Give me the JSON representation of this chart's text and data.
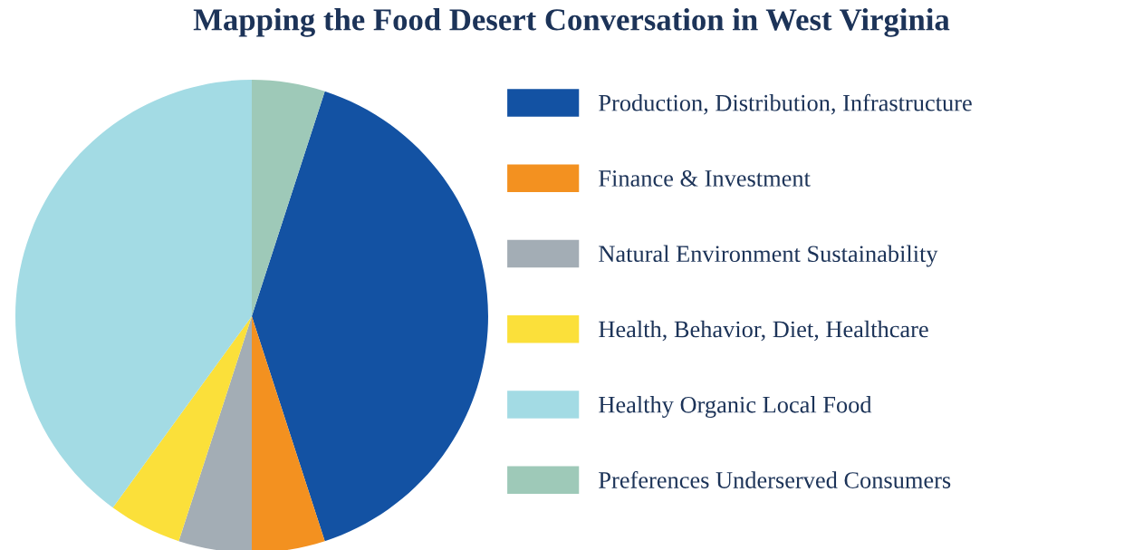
{
  "chart_data": {
    "type": "pie",
    "title": "Mapping the Food Desert Conversation in West Virginia",
    "categories": [
      "Production, Distribution, Infrastructure",
      "Finance & Investment",
      "Natural Environment Sustainability",
      "Health, Behavior, Diet, Healthcare",
      "Healthy Organic Local Food",
      "Preferences Underserved Consumers"
    ],
    "values": [
      40,
      5,
      5,
      5,
      40,
      5
    ],
    "colors": [
      "#1352a3",
      "#f39120",
      "#a3adb5",
      "#fbe03a",
      "#a3dbe4",
      "#9ec9b8"
    ],
    "legend": "right"
  }
}
